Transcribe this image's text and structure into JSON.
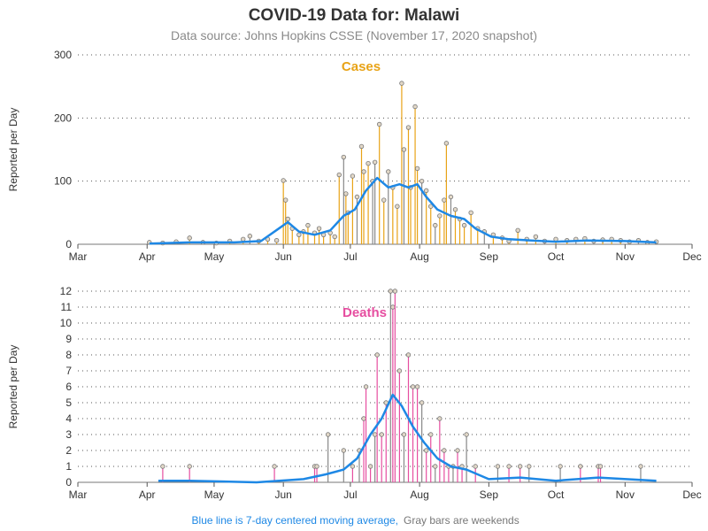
{
  "title": "COVID-19 Data for: Malawi",
  "subtitle": "Data source: Johns Hopkins CSSE (November 17, 2020 snapshot)",
  "footnote": {
    "moving_average_note": "Blue line is 7-day centered moving average,",
    "weekend_note": "Gray bars are weekends"
  },
  "colors": {
    "cases": "#e8a317",
    "deaths": "#e64ea0",
    "weekend": "#888888",
    "moving_average": "#1e88e5",
    "marker_fill": "#e2d8c8",
    "grid": "#555555",
    "text": "#333333"
  },
  "chart_data": [
    {
      "type": "bar",
      "panel": "Cases",
      "ylabel": "Reported per Day",
      "ylim": [
        0,
        300
      ],
      "yticks": [
        0,
        100,
        200,
        300
      ],
      "xlim": [
        "2020-03-01",
        "2020-12-01"
      ],
      "xticks": [
        {
          "date": "2020-03-01",
          "label": "Mar"
        },
        {
          "date": "2020-04-01",
          "label": "Apr"
        },
        {
          "date": "2020-05-01",
          "label": "May"
        },
        {
          "date": "2020-06-01",
          "label": "Jun"
        },
        {
          "date": "2020-07-01",
          "label": "Jul"
        },
        {
          "date": "2020-08-01",
          "label": "Aug"
        },
        {
          "date": "2020-09-01",
          "label": "Sep"
        },
        {
          "date": "2020-10-01",
          "label": "Oct"
        },
        {
          "date": "2020-11-01",
          "label": "Nov"
        },
        {
          "date": "2020-12-01",
          "label": "Dec"
        }
      ],
      "grid": true,
      "series": [
        {
          "values": [
            {
              "date": "2020-04-02",
              "value": 3
            },
            {
              "date": "2020-04-08",
              "value": 2
            },
            {
              "date": "2020-04-14",
              "value": 4
            },
            {
              "date": "2020-04-20",
              "value": 10
            },
            {
              "date": "2020-04-26",
              "value": 3
            },
            {
              "date": "2020-05-02",
              "value": 2
            },
            {
              "date": "2020-05-08",
              "value": 5
            },
            {
              "date": "2020-05-14",
              "value": 8
            },
            {
              "date": "2020-05-17",
              "value": 13
            },
            {
              "date": "2020-05-21",
              "value": 5
            },
            {
              "date": "2020-05-25",
              "value": 8
            },
            {
              "date": "2020-05-29",
              "value": 6
            },
            {
              "date": "2020-06-01",
              "value": 101
            },
            {
              "date": "2020-06-02",
              "value": 70
            },
            {
              "date": "2020-06-03",
              "value": 40
            },
            {
              "date": "2020-06-05",
              "value": 25
            },
            {
              "date": "2020-06-08",
              "value": 15
            },
            {
              "date": "2020-06-10",
              "value": 20
            },
            {
              "date": "2020-06-12",
              "value": 30
            },
            {
              "date": "2020-06-15",
              "value": 18
            },
            {
              "date": "2020-06-17",
              "value": 25
            },
            {
              "date": "2020-06-19",
              "value": 15
            },
            {
              "date": "2020-06-22",
              "value": 18
            },
            {
              "date": "2020-06-24",
              "value": 12
            },
            {
              "date": "2020-06-26",
              "value": 110
            },
            {
              "date": "2020-06-28",
              "value": 138
            },
            {
              "date": "2020-06-29",
              "value": 80
            },
            {
              "date": "2020-06-30",
              "value": 50
            },
            {
              "date": "2020-07-02",
              "value": 108
            },
            {
              "date": "2020-07-04",
              "value": 75
            },
            {
              "date": "2020-07-06",
              "value": 155
            },
            {
              "date": "2020-07-07",
              "value": 115
            },
            {
              "date": "2020-07-09",
              "value": 128
            },
            {
              "date": "2020-07-11",
              "value": 100
            },
            {
              "date": "2020-07-12",
              "value": 130
            },
            {
              "date": "2020-07-14",
              "value": 190
            },
            {
              "date": "2020-07-16",
              "value": 70
            },
            {
              "date": "2020-07-18",
              "value": 115
            },
            {
              "date": "2020-07-20",
              "value": 90
            },
            {
              "date": "2020-07-22",
              "value": 60
            },
            {
              "date": "2020-07-24",
              "value": 255
            },
            {
              "date": "2020-07-25",
              "value": 150
            },
            {
              "date": "2020-07-27",
              "value": 185
            },
            {
              "date": "2020-07-28",
              "value": 90
            },
            {
              "date": "2020-07-30",
              "value": 218
            },
            {
              "date": "2020-07-31",
              "value": 120
            },
            {
              "date": "2020-08-02",
              "value": 100
            },
            {
              "date": "2020-08-04",
              "value": 85
            },
            {
              "date": "2020-08-06",
              "value": 60
            },
            {
              "date": "2020-08-08",
              "value": 30
            },
            {
              "date": "2020-08-10",
              "value": 45
            },
            {
              "date": "2020-08-12",
              "value": 70
            },
            {
              "date": "2020-08-13",
              "value": 160
            },
            {
              "date": "2020-08-15",
              "value": 75
            },
            {
              "date": "2020-08-17",
              "value": 55
            },
            {
              "date": "2020-08-19",
              "value": 40
            },
            {
              "date": "2020-08-21",
              "value": 30
            },
            {
              "date": "2020-08-24",
              "value": 50
            },
            {
              "date": "2020-08-27",
              "value": 25
            },
            {
              "date": "2020-08-30",
              "value": 20
            },
            {
              "date": "2020-09-03",
              "value": 15
            },
            {
              "date": "2020-09-07",
              "value": 10
            },
            {
              "date": "2020-09-10",
              "value": 5
            },
            {
              "date": "2020-09-14",
              "value": 22
            },
            {
              "date": "2020-09-18",
              "value": 8
            },
            {
              "date": "2020-09-22",
              "value": 12
            },
            {
              "date": "2020-09-26",
              "value": 5
            },
            {
              "date": "2020-10-01",
              "value": 8
            },
            {
              "date": "2020-10-06",
              "value": 6
            },
            {
              "date": "2020-10-10",
              "value": 8
            },
            {
              "date": "2020-10-14",
              "value": 9
            },
            {
              "date": "2020-10-18",
              "value": 5
            },
            {
              "date": "2020-10-22",
              "value": 7
            },
            {
              "date": "2020-10-26",
              "value": 8
            },
            {
              "date": "2020-10-30",
              "value": 6
            },
            {
              "date": "2020-11-03",
              "value": 4
            },
            {
              "date": "2020-11-07",
              "value": 6
            },
            {
              "date": "2020-11-11",
              "value": 3
            },
            {
              "date": "2020-11-15",
              "value": 4
            }
          ]
        }
      ],
      "moving_average": [
        {
          "date": "2020-04-02",
          "value": 1
        },
        {
          "date": "2020-04-20",
          "value": 3
        },
        {
          "date": "2020-05-10",
          "value": 3
        },
        {
          "date": "2020-05-22",
          "value": 5
        },
        {
          "date": "2020-05-30",
          "value": 25
        },
        {
          "date": "2020-06-03",
          "value": 35
        },
        {
          "date": "2020-06-08",
          "value": 20
        },
        {
          "date": "2020-06-15",
          "value": 15
        },
        {
          "date": "2020-06-22",
          "value": 22
        },
        {
          "date": "2020-06-28",
          "value": 45
        },
        {
          "date": "2020-07-03",
          "value": 55
        },
        {
          "date": "2020-07-08",
          "value": 85
        },
        {
          "date": "2020-07-13",
          "value": 105
        },
        {
          "date": "2020-07-18",
          "value": 90
        },
        {
          "date": "2020-07-23",
          "value": 95
        },
        {
          "date": "2020-07-27",
          "value": 90
        },
        {
          "date": "2020-07-31",
          "value": 95
        },
        {
          "date": "2020-08-04",
          "value": 75
        },
        {
          "date": "2020-08-09",
          "value": 55
        },
        {
          "date": "2020-08-15",
          "value": 45
        },
        {
          "date": "2020-08-21",
          "value": 40
        },
        {
          "date": "2020-08-26",
          "value": 25
        },
        {
          "date": "2020-09-02",
          "value": 12
        },
        {
          "date": "2020-09-10",
          "value": 8
        },
        {
          "date": "2020-09-20",
          "value": 6
        },
        {
          "date": "2020-10-01",
          "value": 4
        },
        {
          "date": "2020-10-15",
          "value": 6
        },
        {
          "date": "2020-11-01",
          "value": 5
        },
        {
          "date": "2020-11-15",
          "value": 3
        }
      ]
    },
    {
      "type": "bar",
      "panel": "Deaths",
      "ylabel": "Reported per Day",
      "ylim": [
        0,
        12
      ],
      "yticks": [
        0,
        1,
        2,
        3,
        4,
        5,
        6,
        7,
        8,
        9,
        10,
        11,
        12
      ],
      "xlim": [
        "2020-03-01",
        "2020-12-01"
      ],
      "xticks": [
        {
          "date": "2020-03-01",
          "label": "Mar"
        },
        {
          "date": "2020-04-01",
          "label": "Apr"
        },
        {
          "date": "2020-05-01",
          "label": "May"
        },
        {
          "date": "2020-06-01",
          "label": "Jun"
        },
        {
          "date": "2020-07-01",
          "label": "Jul"
        },
        {
          "date": "2020-08-01",
          "label": "Aug"
        },
        {
          "date": "2020-09-01",
          "label": "Sep"
        },
        {
          "date": "2020-10-01",
          "label": "Oct"
        },
        {
          "date": "2020-11-01",
          "label": "Nov"
        },
        {
          "date": "2020-12-01",
          "label": "Dec"
        }
      ],
      "grid": true,
      "series": [
        {
          "values": [
            {
              "date": "2020-04-08",
              "value": 1
            },
            {
              "date": "2020-04-20",
              "value": 1
            },
            {
              "date": "2020-05-28",
              "value": 1
            },
            {
              "date": "2020-06-15",
              "value": 1
            },
            {
              "date": "2020-06-16",
              "value": 1
            },
            {
              "date": "2020-06-21",
              "value": 3
            },
            {
              "date": "2020-06-28",
              "value": 2
            },
            {
              "date": "2020-07-02",
              "value": 1
            },
            {
              "date": "2020-07-05",
              "value": 2
            },
            {
              "date": "2020-07-07",
              "value": 4
            },
            {
              "date": "2020-07-08",
              "value": 6
            },
            {
              "date": "2020-07-10",
              "value": 1
            },
            {
              "date": "2020-07-12",
              "value": 3
            },
            {
              "date": "2020-07-13",
              "value": 8
            },
            {
              "date": "2020-07-15",
              "value": 3
            },
            {
              "date": "2020-07-17",
              "value": 5
            },
            {
              "date": "2020-07-19",
              "value": 12
            },
            {
              "date": "2020-07-20",
              "value": 11
            },
            {
              "date": "2020-07-21",
              "value": 12
            },
            {
              "date": "2020-07-23",
              "value": 7
            },
            {
              "date": "2020-07-25",
              "value": 3
            },
            {
              "date": "2020-07-27",
              "value": 8
            },
            {
              "date": "2020-07-29",
              "value": 6
            },
            {
              "date": "2020-07-31",
              "value": 6
            },
            {
              "date": "2020-08-02",
              "value": 5
            },
            {
              "date": "2020-08-04",
              "value": 2
            },
            {
              "date": "2020-08-06",
              "value": 3
            },
            {
              "date": "2020-08-08",
              "value": 1
            },
            {
              "date": "2020-08-10",
              "value": 4
            },
            {
              "date": "2020-08-12",
              "value": 2
            },
            {
              "date": "2020-08-14",
              "value": 1
            },
            {
              "date": "2020-08-16",
              "value": 1
            },
            {
              "date": "2020-08-18",
              "value": 2
            },
            {
              "date": "2020-08-20",
              "value": 1
            },
            {
              "date": "2020-08-22",
              "value": 3
            },
            {
              "date": "2020-08-26",
              "value": 1
            },
            {
              "date": "2020-09-05",
              "value": 1
            },
            {
              "date": "2020-09-10",
              "value": 1
            },
            {
              "date": "2020-09-15",
              "value": 1
            },
            {
              "date": "2020-09-19",
              "value": 1
            },
            {
              "date": "2020-10-03",
              "value": 1
            },
            {
              "date": "2020-10-12",
              "value": 1
            },
            {
              "date": "2020-10-20",
              "value": 1
            },
            {
              "date": "2020-10-21",
              "value": 1
            },
            {
              "date": "2020-11-08",
              "value": 1
            }
          ]
        }
      ],
      "moving_average": [
        {
          "date": "2020-04-06",
          "value": 0.1
        },
        {
          "date": "2020-04-20",
          "value": 0.1
        },
        {
          "date": "2020-05-20",
          "value": 0
        },
        {
          "date": "2020-06-10",
          "value": 0.2
        },
        {
          "date": "2020-06-20",
          "value": 0.5
        },
        {
          "date": "2020-06-28",
          "value": 0.8
        },
        {
          "date": "2020-07-04",
          "value": 1.5
        },
        {
          "date": "2020-07-10",
          "value": 3.0
        },
        {
          "date": "2020-07-15",
          "value": 4.0
        },
        {
          "date": "2020-07-20",
          "value": 5.5
        },
        {
          "date": "2020-07-24",
          "value": 4.8
        },
        {
          "date": "2020-07-29",
          "value": 3.5
        },
        {
          "date": "2020-08-03",
          "value": 2.5
        },
        {
          "date": "2020-08-09",
          "value": 1.5
        },
        {
          "date": "2020-08-15",
          "value": 1.0
        },
        {
          "date": "2020-08-22",
          "value": 0.8
        },
        {
          "date": "2020-09-01",
          "value": 0.2
        },
        {
          "date": "2020-09-15",
          "value": 0.3
        },
        {
          "date": "2020-10-01",
          "value": 0.1
        },
        {
          "date": "2020-10-20",
          "value": 0.3
        },
        {
          "date": "2020-11-15",
          "value": 0.1
        }
      ]
    }
  ]
}
